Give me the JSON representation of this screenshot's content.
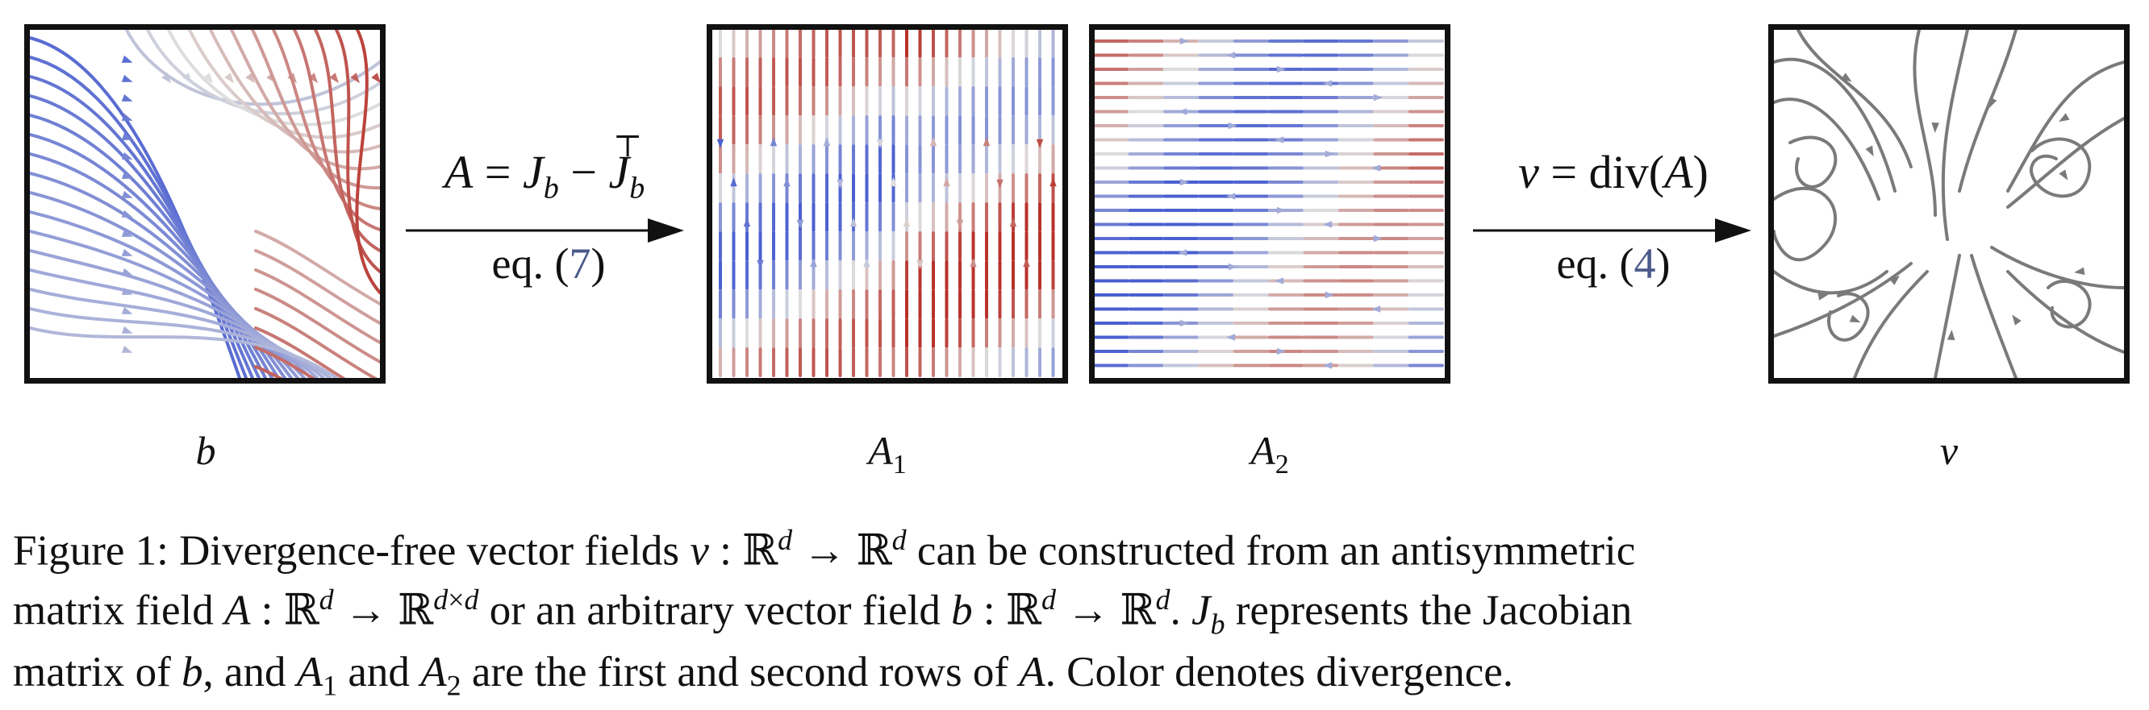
{
  "panels": {
    "b_label": "b",
    "a1_label": "A",
    "a1_sub": "1",
    "a2_label": "A",
    "a2_sub": "2",
    "v_label": "v"
  },
  "arrow_left": {
    "top_formula": "A = J_b − J_b^⊤",
    "bottom_prefix": "eq. (",
    "bottom_ref": "7",
    "bottom_suffix": ")"
  },
  "arrow_right": {
    "top_formula": "v = div(A)",
    "bottom_prefix": "eq. (",
    "bottom_ref": "4",
    "bottom_suffix": ")"
  },
  "caption": {
    "line1": "Figure 1: Divergence-free vector fields v : ℝ^d → ℝ^d can be constructed from an antisymmetric",
    "line2": "matrix field A : ℝ^d → ℝ^{d×d} or an arbitrary vector field b : ℝ^d → ℝ^d. J_b represents the Jacobian",
    "line3": "matrix of b, and A_1 and A_2 are the first and second rows of A. Color denotes divergence."
  },
  "colors": {
    "blue": "#5b6fd6",
    "red": "#c0392b",
    "gray": "#7a7a7a",
    "neutral": "#dddddd"
  }
}
